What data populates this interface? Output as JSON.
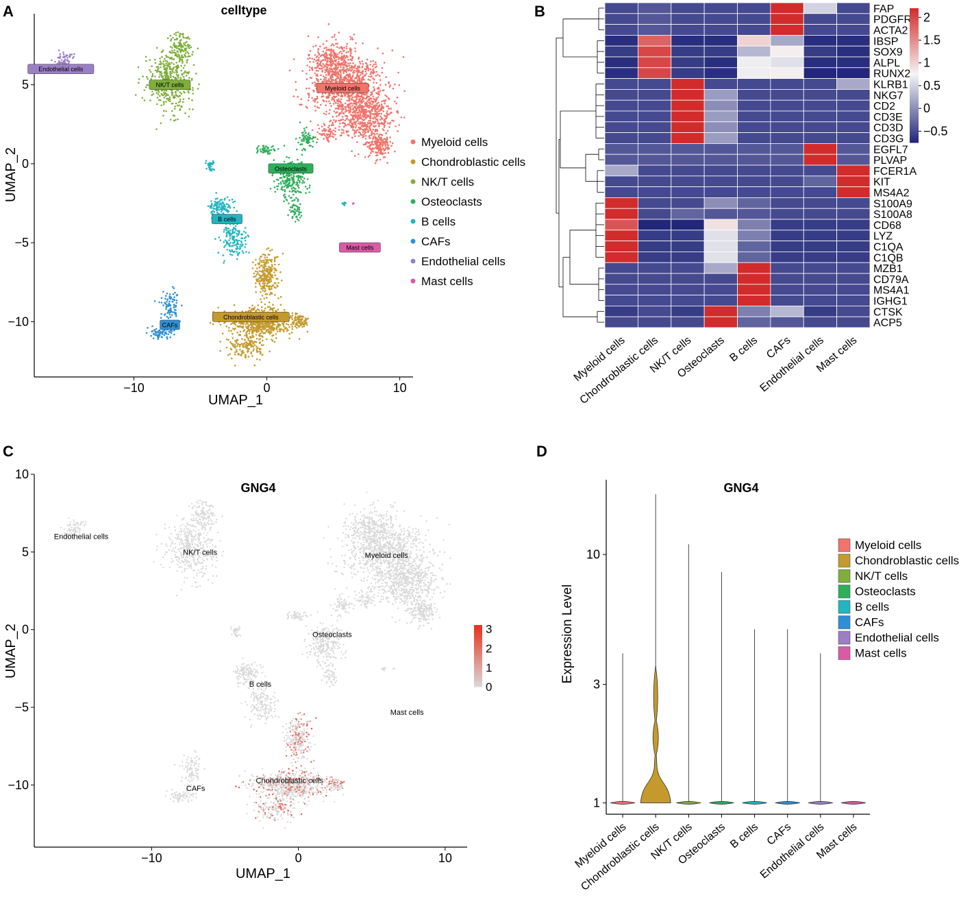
{
  "panel_labels": {
    "A": "A",
    "B": "B",
    "C": "C",
    "D": "D"
  },
  "colors": {
    "Myeloid cells": "#f0746b",
    "Chondroblastic cells": "#c49a2c",
    "NK/T cells": "#7fae3d",
    "Osteoclasts": "#2fae5b",
    "B cells": "#22b5c0",
    "CAFs": "#2f8fd4",
    "Endothelial cells": "#9b7fc4",
    "Mast cells": "#d95aa5",
    "heat_low": "#22277a",
    "heat_mid": "#f5f5f5",
    "heat_high": "#d22b2b",
    "feature_low": "#d9d9d9",
    "feature_high": "#e8301c"
  },
  "chart_data": [
    {
      "id": "A",
      "type": "scatter",
      "title": "celltype",
      "xlabel": "UMAP_1",
      "ylabel": "UMAP_2",
      "xlim": [
        -17.5,
        11
      ],
      "ylim": [
        -13.5,
        9.5
      ],
      "xticks": [
        -10,
        0,
        10
      ],
      "xtick_labels": [
        "−10",
        "0",
        "10"
      ],
      "yticks": [
        5,
        0,
        -5,
        -10
      ],
      "ytick_labels": [
        "5",
        "0",
        "−5",
        "−10"
      ],
      "grid": false,
      "legend_position": "right",
      "legend": [
        "Myeloid cells",
        "Chondroblastic cells",
        "NK/T cells",
        "Osteoclasts",
        "B cells",
        "CAFs",
        "Endothelial cells",
        "Mast cells"
      ],
      "cluster_labels": [
        {
          "name": "Endothelial cells",
          "x": -15.5,
          "y": 6.0
        },
        {
          "name": "NK/T cells",
          "x": -7.3,
          "y": 5.0
        },
        {
          "name": "Myeloid cells",
          "x": 5.7,
          "y": 4.8
        },
        {
          "name": "Osteoclasts",
          "x": 1.8,
          "y": -0.3
        },
        {
          "name": "B cells",
          "x": -3.0,
          "y": -3.5
        },
        {
          "name": "Mast cells",
          "x": 7.0,
          "y": -5.3
        },
        {
          "name": "Chondroblastic cells",
          "x": -1.2,
          "y": -9.7
        },
        {
          "name": "CAFs",
          "x": -7.3,
          "y": -10.2
        }
      ]
    },
    {
      "id": "B",
      "type": "heatmap",
      "columns": [
        "Myeloid cells",
        "Chondroblastic cells",
        "NK/T cells",
        "Osteoclasts",
        "B cells",
        "CAFs",
        "Endothelial cells",
        "Mast cells"
      ],
      "rows": [
        "FAP",
        "PDGFRB",
        "ACTA2",
        "IBSP",
        "SOX9",
        "ALPL",
        "RUNX2",
        "KLRB1",
        "NKG7",
        "CD2",
        "CD3E",
        "CD3D",
        "CD3G",
        "EGFL7",
        "PLVAP",
        "FCER1A",
        "KIT",
        "MS4A2",
        "S100A9",
        "S100A8",
        "CD68",
        "LYZ",
        "C1QA",
        "C1QB",
        "MZB1",
        "CD79A",
        "MS4A1",
        "IGHG1",
        "CTSK",
        "ACP5"
      ],
      "values": [
        [
          -0.5,
          -0.4,
          -0.5,
          -0.5,
          -0.5,
          2.2,
          0.5,
          -0.5
        ],
        [
          -0.5,
          -0.4,
          -0.5,
          -0.5,
          -0.5,
          2.2,
          -0.5,
          -0.5
        ],
        [
          -0.5,
          -0.4,
          -0.5,
          -0.5,
          -0.5,
          2.2,
          -0.5,
          -0.5
        ],
        [
          -0.7,
          1.8,
          -0.7,
          -0.7,
          1.0,
          0.2,
          -0.7,
          -0.7
        ],
        [
          -0.6,
          2.0,
          -0.6,
          -0.6,
          0.3,
          0.8,
          -0.6,
          -0.7
        ],
        [
          -0.7,
          2.0,
          -0.6,
          -0.7,
          0.7,
          0.6,
          -0.7,
          -0.7
        ],
        [
          -0.7,
          2.0,
          -0.6,
          -0.7,
          0.7,
          0.8,
          -0.8,
          -0.8
        ],
        [
          -0.5,
          -0.5,
          2.3,
          -0.5,
          -0.5,
          -0.5,
          -0.5,
          0.2
        ],
        [
          -0.5,
          -0.5,
          2.3,
          0.1,
          -0.5,
          -0.5,
          -0.5,
          -0.5
        ],
        [
          -0.5,
          -0.5,
          2.3,
          0.0,
          -0.5,
          -0.5,
          -0.5,
          -0.5
        ],
        [
          -0.5,
          -0.5,
          2.3,
          0.1,
          -0.5,
          -0.5,
          -0.5,
          -0.5
        ],
        [
          -0.5,
          -0.5,
          2.3,
          0.0,
          -0.5,
          -0.5,
          -0.5,
          -0.5
        ],
        [
          -0.5,
          -0.5,
          2.3,
          0.1,
          -0.5,
          -0.5,
          -0.5,
          -0.5
        ],
        [
          -0.4,
          -0.4,
          -0.4,
          -0.4,
          -0.4,
          -0.4,
          2.3,
          -0.4
        ],
        [
          -0.4,
          -0.4,
          -0.4,
          -0.4,
          -0.4,
          -0.4,
          2.3,
          -0.4
        ],
        [
          0.2,
          -0.5,
          -0.5,
          -0.5,
          -0.5,
          -0.5,
          -0.5,
          2.3
        ],
        [
          -0.5,
          -0.5,
          -0.5,
          -0.5,
          -0.5,
          -0.5,
          -0.3,
          2.3
        ],
        [
          -0.5,
          -0.5,
          -0.5,
          -0.5,
          -0.5,
          -0.5,
          -0.5,
          2.3
        ],
        [
          2.3,
          -0.5,
          -0.5,
          0.0,
          -0.3,
          -0.5,
          -0.5,
          -0.5
        ],
        [
          2.3,
          -0.5,
          -0.3,
          -0.4,
          -0.4,
          -0.5,
          -0.5,
          -0.5
        ],
        [
          1.9,
          -0.8,
          -0.8,
          0.9,
          -0.1,
          -0.6,
          -0.6,
          -0.6
        ],
        [
          2.2,
          -0.6,
          -0.6,
          0.6,
          -0.1,
          -0.6,
          -0.6,
          -0.6
        ],
        [
          2.2,
          -0.6,
          -0.6,
          0.6,
          -0.3,
          -0.6,
          -0.6,
          -0.6
        ],
        [
          2.2,
          -0.6,
          -0.6,
          0.6,
          -0.3,
          -0.6,
          -0.6,
          -0.6
        ],
        [
          -0.5,
          -0.5,
          -0.5,
          0.2,
          2.3,
          -0.5,
          -0.5,
          -0.5
        ],
        [
          -0.5,
          -0.5,
          -0.5,
          -0.5,
          2.3,
          -0.5,
          -0.5,
          -0.5
        ],
        [
          -0.5,
          -0.5,
          -0.5,
          -0.5,
          2.3,
          -0.5,
          -0.5,
          -0.5
        ],
        [
          -0.5,
          -0.5,
          -0.5,
          -0.5,
          2.3,
          -0.5,
          -0.5,
          -0.5
        ],
        [
          -0.6,
          -0.5,
          -0.6,
          2.3,
          -0.1,
          0.3,
          -0.6,
          -0.5
        ],
        [
          -0.5,
          -0.5,
          -0.5,
          2.3,
          -0.3,
          -0.4,
          -0.5,
          -0.5
        ]
      ],
      "colorbar": {
        "range": [
          -0.75,
          2.2
        ],
        "ticks": [
          2,
          1.5,
          1,
          0.5,
          0,
          -0.5
        ],
        "tick_labels": [
          "2",
          "1.5",
          "1",
          "0.5",
          "0",
          "−0.5"
        ]
      },
      "dendrogram_groups": [
        [
          "FAP",
          "PDGFRB",
          "ACTA2"
        ],
        [
          "IBSP",
          "SOX9",
          "ALPL",
          "RUNX2"
        ],
        [
          "KLRB1",
          "NKG7",
          "CD2",
          "CD3E",
          "CD3D",
          "CD3G"
        ],
        [
          "EGFL7",
          "PLVAP"
        ],
        [
          "FCER1A",
          "KIT",
          "MS4A2"
        ],
        [
          "S100A9",
          "S100A8",
          "CD68",
          "LYZ",
          "C1QA",
          "C1QB"
        ],
        [
          "MZB1",
          "CD79A",
          "MS4A1",
          "IGHG1"
        ],
        [
          "CTSK",
          "ACP5"
        ]
      ]
    },
    {
      "id": "C",
      "type": "scatter",
      "title": "GNG4",
      "xlabel": "UMAP_1",
      "ylabel": "UMAP_2",
      "xlim": [
        -18,
        11.5
      ],
      "ylim": [
        -14,
        10
      ],
      "xticks": [
        -10,
        0,
        10
      ],
      "xtick_labels": [
        "−10",
        "0",
        "10"
      ],
      "yticks": [
        10,
        5,
        0,
        -5,
        -10
      ],
      "ytick_labels": [
        "10",
        "5",
        "0",
        "−5",
        "−10"
      ],
      "grid": false,
      "colorbar": {
        "range": [
          0,
          3.2
        ],
        "ticks": [
          3,
          2,
          1,
          0
        ],
        "tick_labels": [
          "3",
          "2",
          "1",
          "0"
        ]
      },
      "cluster_labels": [
        {
          "name": "Endothelial cells",
          "x": -14.8,
          "y": 6.0
        },
        {
          "name": "NK/T cells",
          "x": -6.7,
          "y": 5.0
        },
        {
          "name": "Myeloid cells",
          "x": 6.0,
          "y": 4.8
        },
        {
          "name": "Osteoclasts",
          "x": 2.3,
          "y": -0.3
        },
        {
          "name": "B cells",
          "x": -2.6,
          "y": -3.5
        },
        {
          "name": "Mast cells",
          "x": 7.4,
          "y": -5.3
        },
        {
          "name": "Chondroblastic cells",
          "x": -0.6,
          "y": -9.7
        },
        {
          "name": "CAFs",
          "x": -7.0,
          "y": -10.2
        }
      ]
    },
    {
      "id": "D",
      "type": "violin",
      "title": "GNG4",
      "ylabel": "Expression Level",
      "yscale": "log",
      "ylim": [
        0.9,
        20
      ],
      "yticks": [
        1,
        3,
        10
      ],
      "ytick_labels": [
        "1",
        "3",
        "10"
      ],
      "categories": [
        "Myeloid cells",
        "Chondroblastic cells",
        "NK/T cells",
        "Osteoclasts",
        "B cells",
        "CAFs",
        "Endothelial cells",
        "Mast cells"
      ],
      "max_values": [
        4.0,
        17.5,
        11.0,
        8.5,
        5.0,
        5.0,
        4.0,
        1.0
      ],
      "legend_position": "right",
      "legend": [
        "Myeloid cells",
        "Chondroblastic cells",
        "NK/T cells",
        "Osteoclasts",
        "B cells",
        "CAFs",
        "Endothelial cells",
        "Mast cells"
      ]
    }
  ]
}
